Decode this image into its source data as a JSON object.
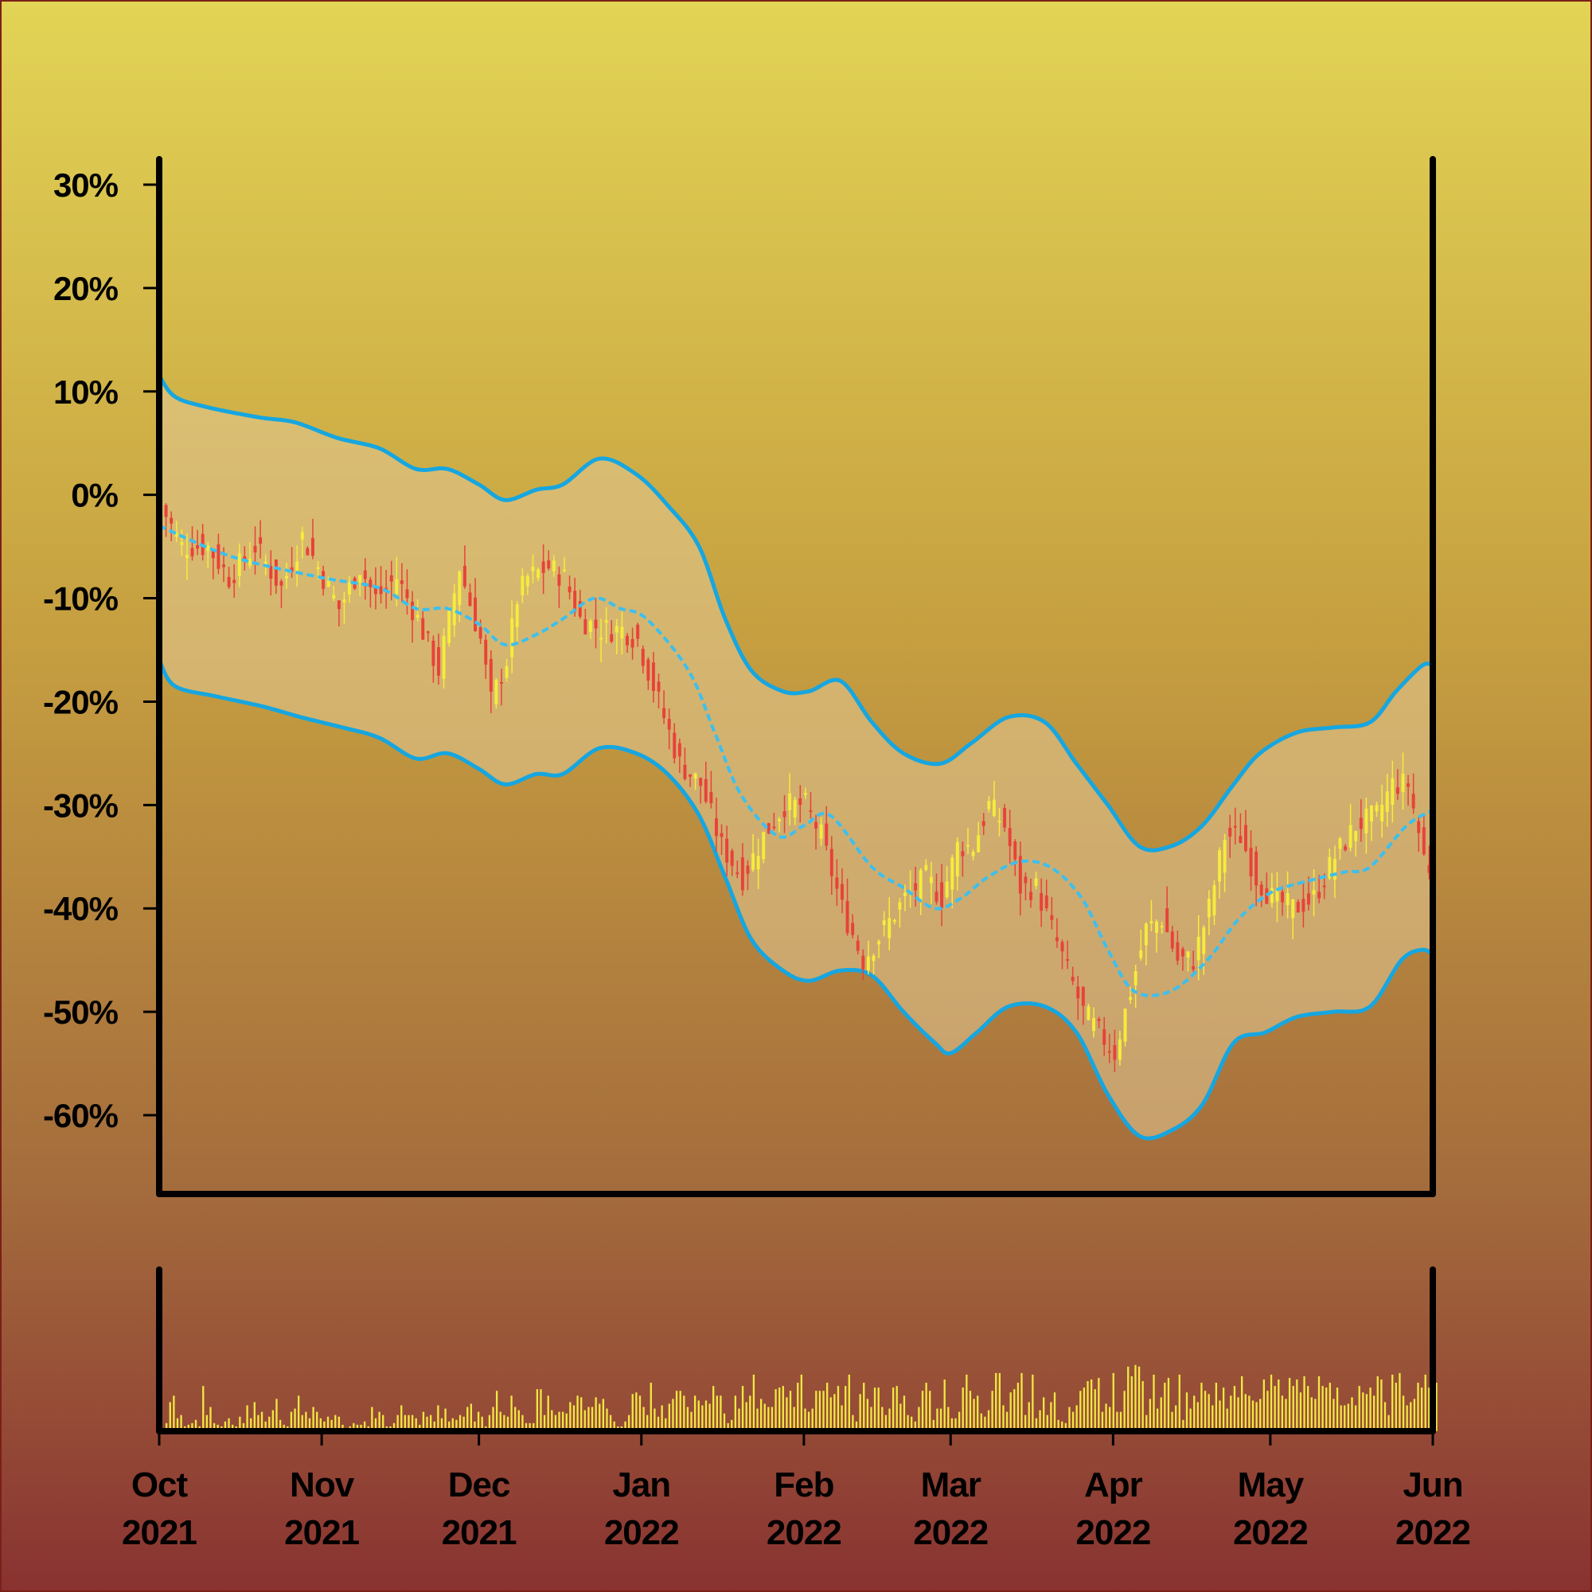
{
  "chart_data": {
    "type": "candlestick",
    "title": "",
    "ylabel": "",
    "xlabel": "",
    "y_format": "percent",
    "ylim": [
      -67,
      30
    ],
    "y_ticks": [
      30,
      20,
      10,
      0,
      -10,
      -20,
      -30,
      -40,
      -50,
      -60
    ],
    "y_tick_labels": [
      "30%",
      "20%",
      "10%",
      "0%",
      "-10%",
      "-20%",
      "-30%",
      "-40%",
      "-50%",
      "-60%"
    ],
    "x_range": [
      "2021-10-01",
      "2022-06-01"
    ],
    "x_ticks": [
      {
        "date": "2021-10-01",
        "month": "Oct",
        "year": "2021"
      },
      {
        "date": "2021-11-01",
        "month": "Nov",
        "year": "2021"
      },
      {
        "date": "2021-12-01",
        "month": "Dec",
        "year": "2021"
      },
      {
        "date": "2022-01-01",
        "month": "Jan",
        "year": "2022"
      },
      {
        "date": "2022-02-01",
        "month": "Feb",
        "year": "2022"
      },
      {
        "date": "2022-03-01",
        "month": "Mar",
        "year": "2022"
      },
      {
        "date": "2022-04-01",
        "month": "Apr",
        "year": "2022"
      },
      {
        "date": "2022-05-01",
        "month": "May",
        "year": "2022"
      },
      {
        "date": "2022-06-01",
        "month": "Jun",
        "year": "2022"
      }
    ],
    "close_path": [
      [
        "2021-10-01",
        -1
      ],
      [
        "2021-10-05",
        -5
      ],
      [
        "2021-10-10",
        -5
      ],
      [
        "2021-10-14",
        -8
      ],
      [
        "2021-10-19",
        -5
      ],
      [
        "2021-10-24",
        -9
      ],
      [
        "2021-10-28",
        -4
      ],
      [
        "2021-11-01",
        -8
      ],
      [
        "2021-11-04",
        -11
      ],
      [
        "2021-11-08",
        -7
      ],
      [
        "2021-11-11",
        -10
      ],
      [
        "2021-11-15",
        -8
      ],
      [
        "2021-11-19",
        -12
      ],
      [
        "2021-11-23",
        -17
      ],
      [
        "2021-11-27",
        -7
      ],
      [
        "2021-12-01",
        -14
      ],
      [
        "2021-12-03",
        -20
      ],
      [
        "2021-12-06",
        -16
      ],
      [
        "2021-12-08",
        -10
      ],
      [
        "2021-12-10",
        -8
      ],
      [
        "2021-12-14",
        -7
      ],
      [
        "2021-12-17",
        -8
      ],
      [
        "2021-12-20",
        -12
      ],
      [
        "2021-12-24",
        -13
      ],
      [
        "2021-12-28",
        -13
      ],
      [
        "2021-12-31",
        -14
      ],
      [
        "2022-01-04",
        -20
      ],
      [
        "2022-01-08",
        -26
      ],
      [
        "2022-01-12",
        -28
      ],
      [
        "2022-01-16",
        -34
      ],
      [
        "2022-01-20",
        -37
      ],
      [
        "2022-01-24",
        -33
      ],
      [
        "2022-01-28",
        -30
      ],
      [
        "2022-02-01",
        -30
      ],
      [
        "2022-02-04",
        -33
      ],
      [
        "2022-02-08",
        -40
      ],
      [
        "2022-02-12",
        -45
      ],
      [
        "2022-02-16",
        -42
      ],
      [
        "2022-02-20",
        -39
      ],
      [
        "2022-02-24",
        -37
      ],
      [
        "2022-02-27",
        -39
      ],
      [
        "2022-03-02",
        -34
      ],
      [
        "2022-03-05",
        -34
      ],
      [
        "2022-03-08",
        -30
      ],
      [
        "2022-03-11",
        -32
      ],
      [
        "2022-03-14",
        -38
      ],
      [
        "2022-03-17",
        -38
      ],
      [
        "2022-03-20",
        -42
      ],
      [
        "2022-03-23",
        -46
      ],
      [
        "2022-03-26",
        -50
      ],
      [
        "2022-03-29",
        -52
      ],
      [
        "2022-04-01",
        -54
      ],
      [
        "2022-04-04",
        -48
      ],
      [
        "2022-04-07",
        -42
      ],
      [
        "2022-04-10",
        -41
      ],
      [
        "2022-04-13",
        -45
      ],
      [
        "2022-04-16",
        -45
      ],
      [
        "2022-04-19",
        -40
      ],
      [
        "2022-04-22",
        -33
      ],
      [
        "2022-04-25",
        -33
      ],
      [
        "2022-04-28",
        -37
      ],
      [
        "2022-05-01",
        -39
      ],
      [
        "2022-05-05",
        -40
      ],
      [
        "2022-05-09",
        -39
      ],
      [
        "2022-05-13",
        -35
      ],
      [
        "2022-05-17",
        -32
      ],
      [
        "2022-05-21",
        -31
      ],
      [
        "2022-05-24",
        -28
      ],
      [
        "2022-05-27",
        -28
      ],
      [
        "2022-05-30",
        -35
      ],
      [
        "2022-06-01",
        -37
      ]
    ],
    "moving_average": [
      [
        "2021-10-01",
        -3
      ],
      [
        "2021-10-15",
        -6
      ],
      [
        "2021-11-01",
        -8
      ],
      [
        "2021-11-12",
        -9
      ],
      [
        "2021-11-19",
        -11
      ],
      [
        "2021-11-25",
        -11
      ],
      [
        "2021-12-01",
        -12.5
      ],
      [
        "2021-12-06",
        -14.5
      ],
      [
        "2021-12-12",
        -13.5
      ],
      [
        "2021-12-17",
        -12
      ],
      [
        "2021-12-23",
        -10
      ],
      [
        "2021-12-28",
        -11
      ],
      [
        "2022-01-02",
        -12
      ],
      [
        "2022-01-10",
        -17
      ],
      [
        "2022-01-15",
        -23
      ],
      [
        "2022-01-20",
        -29
      ],
      [
        "2022-01-27",
        -33
      ],
      [
        "2022-02-01",
        -32
      ],
      [
        "2022-02-06",
        -31
      ],
      [
        "2022-02-14",
        -36
      ],
      [
        "2022-02-20",
        -38
      ],
      [
        "2022-02-26",
        -40
      ],
      [
        "2022-03-03",
        -39
      ],
      [
        "2022-03-08",
        -37
      ],
      [
        "2022-03-14",
        -35.5
      ],
      [
        "2022-03-20",
        -36
      ],
      [
        "2022-03-26",
        -39
      ],
      [
        "2022-03-31",
        -44
      ],
      [
        "2022-04-05",
        -48
      ],
      [
        "2022-04-12",
        -48
      ],
      [
        "2022-04-19",
        -45
      ],
      [
        "2022-04-25",
        -41
      ],
      [
        "2022-05-01",
        -38.5
      ],
      [
        "2022-05-07",
        -37.5
      ],
      [
        "2022-05-15",
        -36.5
      ],
      [
        "2022-05-20",
        -36
      ],
      [
        "2022-05-27",
        -32
      ],
      [
        "2022-06-01",
        -30.5
      ]
    ],
    "upper_band": [
      [
        "2021-10-01",
        11.5
      ],
      [
        "2021-10-04",
        9.5
      ],
      [
        "2021-10-10",
        8.5
      ],
      [
        "2021-10-20",
        7.5
      ],
      [
        "2021-10-27",
        7
      ],
      [
        "2021-11-04",
        5.5
      ],
      [
        "2021-11-12",
        4.5
      ],
      [
        "2021-11-19",
        2.5
      ],
      [
        "2021-11-25",
        2.5
      ],
      [
        "2021-12-01",
        1
      ],
      [
        "2021-12-06",
        -0.5
      ],
      [
        "2021-12-12",
        0.5
      ],
      [
        "2021-12-17",
        1
      ],
      [
        "2021-12-24",
        3.5
      ],
      [
        "2021-12-31",
        2
      ],
      [
        "2022-01-06",
        -1
      ],
      [
        "2022-01-12",
        -5
      ],
      [
        "2022-01-17",
        -12
      ],
      [
        "2022-01-22",
        -17
      ],
      [
        "2022-01-28",
        -19
      ],
      [
        "2022-02-02",
        -19
      ],
      [
        "2022-02-08",
        -18
      ],
      [
        "2022-02-14",
        -22
      ],
      [
        "2022-02-20",
        -25
      ],
      [
        "2022-02-27",
        -26
      ],
      [
        "2022-03-05",
        -24
      ],
      [
        "2022-03-12",
        -21.5
      ],
      [
        "2022-03-19",
        -22
      ],
      [
        "2022-03-25",
        -26
      ],
      [
        "2022-03-31",
        -30
      ],
      [
        "2022-04-06",
        -34
      ],
      [
        "2022-04-12",
        -34
      ],
      [
        "2022-04-18",
        -32
      ],
      [
        "2022-04-24",
        -28
      ],
      [
        "2022-04-29",
        -25
      ],
      [
        "2022-05-06",
        -23
      ],
      [
        "2022-05-13",
        -22.5
      ],
      [
        "2022-05-20",
        -22
      ],
      [
        "2022-05-25",
        -19
      ],
      [
        "2022-05-30",
        -16.5
      ],
      [
        "2022-06-01",
        -16.5
      ]
    ],
    "lower_band": [
      [
        "2021-10-01",
        -16
      ],
      [
        "2021-10-04",
        -18.5
      ],
      [
        "2021-10-12",
        -19.5
      ],
      [
        "2021-10-21",
        -20.5
      ],
      [
        "2021-10-28",
        -21.5
      ],
      [
        "2021-11-05",
        -22.5
      ],
      [
        "2021-11-12",
        -23.5
      ],
      [
        "2021-11-19",
        -25.5
      ],
      [
        "2021-11-25",
        -25
      ],
      [
        "2021-12-01",
        -26.5
      ],
      [
        "2021-12-06",
        -28
      ],
      [
        "2021-12-12",
        -27
      ],
      [
        "2021-12-17",
        -27
      ],
      [
        "2021-12-24",
        -24.5
      ],
      [
        "2021-12-31",
        -25
      ],
      [
        "2022-01-06",
        -27
      ],
      [
        "2022-01-12",
        -31
      ],
      [
        "2022-01-17",
        -37
      ],
      [
        "2022-01-22",
        -43
      ],
      [
        "2022-01-28",
        -46
      ],
      [
        "2022-02-02",
        -47
      ],
      [
        "2022-02-08",
        -46
      ],
      [
        "2022-02-14",
        -46.5
      ],
      [
        "2022-02-20",
        -50
      ],
      [
        "2022-02-26",
        -53
      ],
      [
        "2022-03-01",
        -54
      ],
      [
        "2022-03-06",
        -52
      ],
      [
        "2022-03-12",
        -49.5
      ],
      [
        "2022-03-19",
        -49.5
      ],
      [
        "2022-03-25",
        -52
      ],
      [
        "2022-03-31",
        -58
      ],
      [
        "2022-04-06",
        -62
      ],
      [
        "2022-04-12",
        -61.5
      ],
      [
        "2022-04-18",
        -59
      ],
      [
        "2022-04-24",
        -53
      ],
      [
        "2022-04-30",
        -52
      ],
      [
        "2022-05-06",
        -50.5
      ],
      [
        "2022-05-13",
        -50
      ],
      [
        "2022-05-20",
        -49.5
      ],
      [
        "2022-05-26",
        -45
      ],
      [
        "2022-05-30",
        -44
      ],
      [
        "2022-06-01",
        -44.5
      ]
    ],
    "volume": {
      "ylim": [
        0,
        100
      ],
      "values": [
        5,
        18,
        22,
        8,
        10,
        3,
        4,
        5,
        7,
        3,
        28,
        10,
        15,
        5,
        4,
        3,
        6,
        8,
        4,
        3,
        9,
        5,
        16,
        8,
        18,
        10,
        12,
        6,
        9,
        13,
        20,
        7,
        4,
        3,
        12,
        14,
        22,
        10,
        12,
        8,
        15,
        12,
        8,
        6,
        9,
        7,
        10,
        9,
        4,
        2,
        3,
        5,
        4,
        4,
        6,
        3,
        15,
        8,
        12,
        10,
        3,
        3,
        5,
        10,
        16,
        10,
        10,
        10,
        8,
        4,
        12,
        9,
        10,
        6,
        16,
        8,
        14,
        6,
        8,
        7,
        10,
        9,
        15,
        17,
        6,
        12,
        9,
        3,
        10,
        15,
        25,
        12,
        10,
        9,
        22,
        15,
        13,
        10,
        5,
        5,
        5,
        26,
        26,
        10,
        22,
        13,
        10,
        12,
        12,
        11,
        18,
        16,
        22,
        21,
        13,
        15,
        15,
        21,
        17,
        20,
        14,
        10,
        6,
        3,
        3,
        6,
        10,
        23,
        24,
        22,
        15,
        10,
        30,
        14,
        9,
        16,
        8,
        17,
        20,
        25,
        25,
        22,
        15,
        12,
        22,
        19,
        16,
        19,
        17,
        28,
        22,
        22,
        11,
        5,
        7,
        22,
        14,
        28,
        18,
        22,
        35,
        14,
        20,
        17,
        15,
        15,
        26,
        27,
        28,
        21,
        25,
        15,
        30,
        35,
        14,
        12,
        14,
        25,
        25,
        25,
        30,
        21,
        23,
        28,
        16,
        28,
        35,
        10,
        6,
        23,
        30,
        20,
        15,
        27,
        27,
        15,
        10,
        14,
        27,
        28,
        17,
        22,
        10,
        9,
        6,
        15,
        25,
        30,
        25,
        7,
        14,
        14,
        32,
        15,
        8,
        8,
        12,
        27,
        35,
        25,
        20,
        22,
        11,
        9,
        13,
        25,
        36,
        36,
        16,
        12,
        24,
        26,
        30,
        36,
        10,
        18,
        35,
        8,
        13,
        21,
        10,
        18,
        24,
        7,
        6,
        5,
        15,
        12,
        16,
        25,
        27,
        31,
        32,
        26,
        33,
        12,
        17,
        15,
        36,
        12,
        12,
        25,
        40,
        34,
        41,
        40,
        31,
        10,
        20,
        35,
        14,
        21,
        30,
        33,
        12,
        16,
        35,
        7,
        24,
        14,
        22,
        18,
        30,
        25,
        23,
        16,
        30,
        19,
        27,
        14,
        22,
        28,
        21,
        34,
        23,
        22,
        19,
        18,
        20,
        32,
        25,
        35,
        28,
        32,
        22,
        20,
        33,
        28,
        32,
        24,
        34,
        28,
        21,
        20,
        34,
        28,
        27,
        30,
        20,
        27,
        16,
        16,
        17,
        21,
        16,
        28,
        24,
        23,
        27,
        22,
        34,
        32,
        18,
        10,
        35,
        30,
        36,
        22,
        16,
        18,
        20,
        30,
        27,
        35,
        27,
        27,
        30
      ]
    }
  }
}
